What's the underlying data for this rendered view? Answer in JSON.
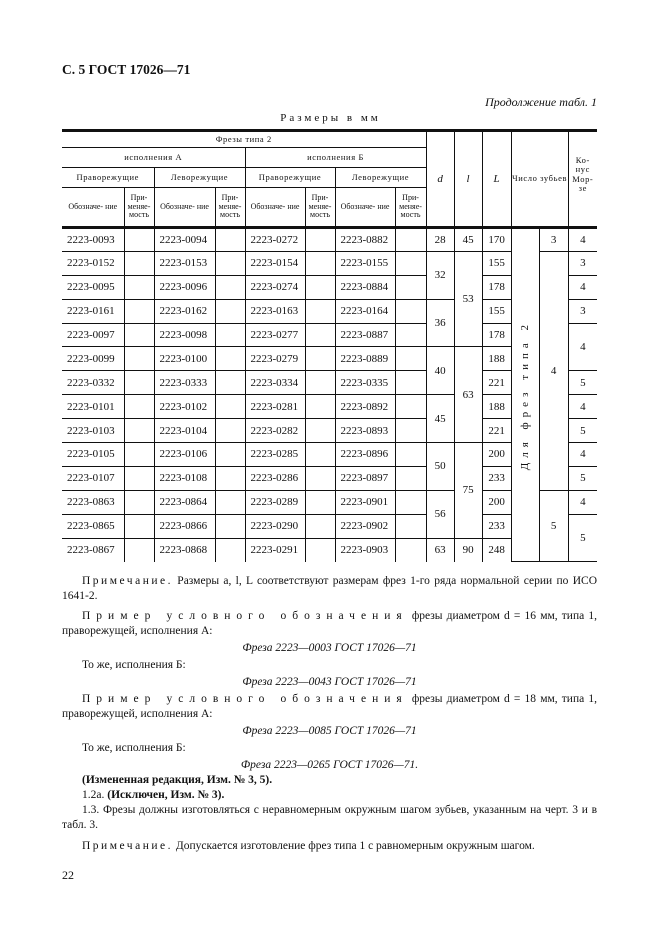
{
  "page_title": "С. 5 ГОСТ 17026—71",
  "continuation": "Продолжение табл. 1",
  "units": "Размеры в мм",
  "table": {
    "header": {
      "group": "Фрезы типа 2",
      "exec_a": "исполнения А",
      "exec_b": "исполнения Б",
      "right_cut": "Праворежущие",
      "left_cut": "Леворежущие",
      "designation": "Обозначе- ние",
      "applicability": "При- меняе- мость",
      "d": "d",
      "l": "l",
      "L": "L",
      "teeth": "Число зубьев",
      "morse": "Ко- нус Мор- зе"
    },
    "side_label": "Для фрез типа 2",
    "rows": [
      {
        "a_right": "2223-0093",
        "a_left": "2223-0094",
        "b_right": "2223-0272",
        "b_left": "2223-0882",
        "L": "170"
      },
      {
        "a_right": "2223-0152",
        "a_left": "2223-0153",
        "b_right": "2223-0154",
        "b_left": "2223-0155",
        "L": "155"
      },
      {
        "a_right": "2223-0095",
        "a_left": "2223-0096",
        "b_right": "2223-0274",
        "b_left": "2223-0884",
        "L": "178"
      },
      {
        "a_right": "2223-0161",
        "a_left": "2223-0162",
        "b_right": "2223-0163",
        "b_left": "2223-0164",
        "L": "155"
      },
      {
        "a_right": "2223-0097",
        "a_left": "2223-0098",
        "b_right": "2223-0277",
        "b_left": "2223-0887",
        "L": "178"
      },
      {
        "a_right": "2223-0099",
        "a_left": "2223-0100",
        "b_right": "2223-0279",
        "b_left": "2223-0889",
        "L": "188"
      },
      {
        "a_right": "2223-0332",
        "a_left": "2223-0333",
        "b_right": "2223-0334",
        "b_left": "2223-0335",
        "L": "221"
      },
      {
        "a_right": "2223-0101",
        "a_left": "2223-0102",
        "b_right": "2223-0281",
        "b_left": "2223-0892",
        "L": "188"
      },
      {
        "a_right": "2223-0103",
        "a_left": "2223-0104",
        "b_right": "2223-0282",
        "b_left": "2223-0893",
        "L": "221"
      },
      {
        "a_right": "2223-0105",
        "a_left": "2223-0106",
        "b_right": "2223-0285",
        "b_left": "2223-0896",
        "L": "200"
      },
      {
        "a_right": "2223-0107",
        "a_left": "2223-0108",
        "b_right": "2223-0286",
        "b_left": "2223-0897",
        "L": "233"
      },
      {
        "a_right": "2223-0863",
        "a_left": "2223-0864",
        "b_right": "2223-0289",
        "b_left": "2223-0901",
        "L": "200"
      },
      {
        "a_right": "2223-0865",
        "a_left": "2223-0866",
        "b_right": "2223-0290",
        "b_left": "2223-0902",
        "L": "233"
      },
      {
        "a_right": "2223-0867",
        "a_left": "2223-0868",
        "b_right": "2223-0291",
        "b_left": "2223-0903",
        "L": "248"
      }
    ],
    "d_groups": [
      {
        "value": "28",
        "rows": 1
      },
      {
        "value": "32",
        "rows": 2
      },
      {
        "value": "36",
        "rows": 2
      },
      {
        "value": "40",
        "rows": 2
      },
      {
        "value": "45",
        "rows": 2
      },
      {
        "value": "50",
        "rows": 2
      },
      {
        "value": "56",
        "rows": 2
      },
      {
        "value": "63",
        "rows": 1
      }
    ],
    "l_groups": [
      {
        "value": "45",
        "rows": 1
      },
      {
        "value": "53",
        "rows": 4
      },
      {
        "value": "63",
        "rows": 4
      },
      {
        "value": "75",
        "rows": 4
      },
      {
        "value": "90",
        "rows": 1
      }
    ],
    "teeth_groups": [
      {
        "value": "3",
        "rows": 1
      },
      {
        "value": "4",
        "rows": 10
      },
      {
        "value": "5",
        "rows": 3
      }
    ],
    "morse_groups": [
      {
        "value": "4",
        "rows": 1
      },
      {
        "value": "3",
        "rows": 1
      },
      {
        "value": "4",
        "rows": 1
      },
      {
        "value": "3",
        "rows": 1
      },
      {
        "value": "4",
        "rows": 2
      },
      {
        "value": "5",
        "rows": 1
      },
      {
        "value": "4",
        "rows": 1
      },
      {
        "value": "5",
        "rows": 1
      },
      {
        "value": "4",
        "rows": 1
      },
      {
        "value": "5",
        "rows": 1
      },
      {
        "value": "4",
        "rows": 1
      },
      {
        "value": "5",
        "rows": 2
      }
    ]
  },
  "notes": {
    "note1_label": "Примечание.",
    "note1_text": " Размеры a, l, L соответствуют размерам фрез 1-го ряда нормальной серии по ИСО 1641-2.",
    "ex1_label": "Пример условного обозначения",
    "ex1_text": " фрезы диаметром d = 16 мм, типа 1, праворежущей, исполнения А:",
    "ex1_code": "Фреза 2223—0003 ГОСТ 17026—71",
    "same1": "То же, исполнения Б:",
    "same1_code": "Фреза 2223—0043 ГОСТ 17026—71",
    "ex2_label": "Пример условного обозначения",
    "ex2_text": " фрезы диаметром d = 18 мм, типа 1, праворежущей, исполнения А:",
    "ex2_code": "Фреза 2223—0085 ГОСТ 17026—71",
    "same2": "То же, исполнения Б:",
    "same2_code": "Фреза 2223—0265 ГОСТ 17026—71.",
    "revision": "(Измененная редакция, Изм. № 3, 5).",
    "p12a_num": "1.2а. ",
    "p12a_text": "(Исключен, Изм. № 3).",
    "p13": "1.3. Фрезы должны изготовляться с неравномерным окружным шагом зубьев, указанным на черт. 3 и в табл. 3.",
    "note2_label": "Примечание.",
    "note2_text": " Допускается изготовление фрез типа 1 с равномерным окружным шагом."
  },
  "page_number": "22"
}
